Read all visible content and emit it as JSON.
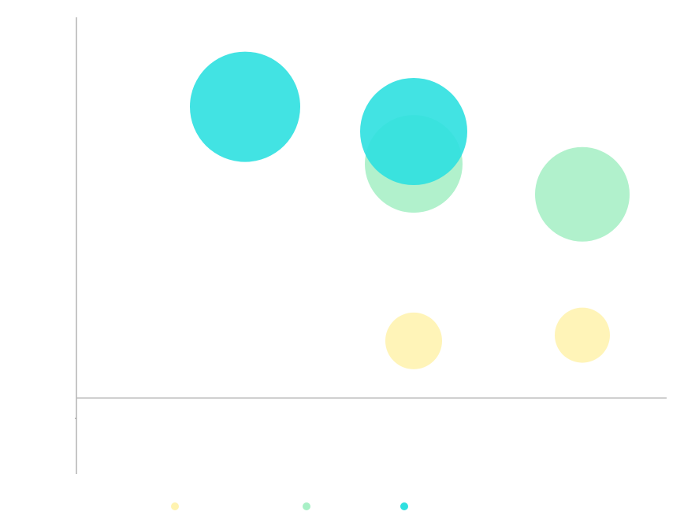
{
  "chart_data": {
    "type": "scatter",
    "title": "",
    "xlabel": "",
    "ylabel": "",
    "xlim": [
      0,
      3.5
    ],
    "ylim": [
      -0.2,
      1
    ],
    "grid": false,
    "legend_position": "bottom",
    "series": [
      {
        "color": "#fff3b0",
        "points": [
          {
            "x": 2,
            "y": 0.15,
            "size": 36
          },
          {
            "x": 3,
            "y": 0.165,
            "size": 35
          }
        ]
      },
      {
        "color": "#a8f0c6",
        "points": [
          {
            "x": 2,
            "y": 0.615,
            "size": 62
          },
          {
            "x": 3,
            "y": 0.535,
            "size": 60
          }
        ]
      },
      {
        "color": "#2ee0e0",
        "points": [
          {
            "x": 1,
            "y": 0.765,
            "size": 70
          },
          {
            "x": 2,
            "y": 0.7,
            "size": 68
          }
        ]
      }
    ]
  }
}
